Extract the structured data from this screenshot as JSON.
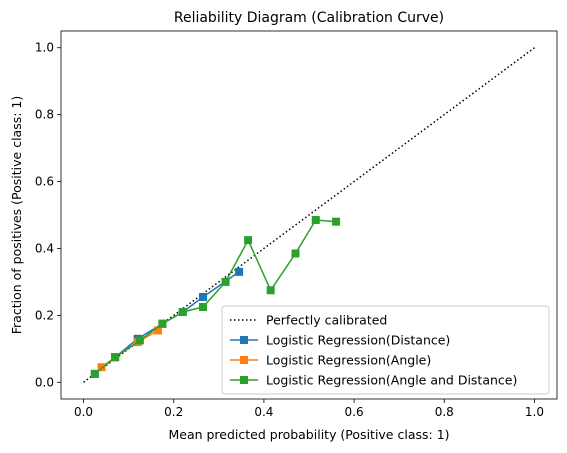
{
  "chart_data": {
    "type": "line",
    "title": "Reliability Diagram (Calibration Curve)",
    "xlabel": "Mean predicted probability (Positive class: 1)",
    "ylabel": "Fraction of positives (Positive class: 1)",
    "xlim": [
      -0.05,
      1.05
    ],
    "ylim": [
      -0.05,
      1.05
    ],
    "xticks": [
      0.0,
      0.2,
      0.4,
      0.6,
      0.8,
      1.0
    ],
    "yticks": [
      0.0,
      0.2,
      0.4,
      0.6,
      0.8,
      1.0
    ],
    "xtick_labels": [
      "0.0",
      "0.2",
      "0.4",
      "0.6",
      "0.8",
      "1.0"
    ],
    "ytick_labels": [
      "0.0",
      "0.2",
      "0.4",
      "0.6",
      "0.8",
      "1.0"
    ],
    "grid": false,
    "legend_position": "lower-right",
    "reference": {
      "name": "Perfectly calibrated",
      "x": [
        0,
        1
      ],
      "y": [
        0,
        1
      ],
      "color": "#000000",
      "style": "dotted"
    },
    "series": [
      {
        "name": "Logistic Regression(Distance)",
        "color": "#1f77b4",
        "x": [
          0.025,
          0.07,
          0.12,
          0.175,
          0.22,
          0.265,
          0.345
        ],
        "y": [
          0.025,
          0.075,
          0.13,
          0.175,
          0.21,
          0.255,
          0.33
        ]
      },
      {
        "name": "Logistic Regression(Angle)",
        "color": "#ff7f0e",
        "x": [
          0.04,
          0.07,
          0.12,
          0.165,
          0.175
        ],
        "y": [
          0.045,
          0.075,
          0.12,
          0.155,
          0.175
        ]
      },
      {
        "name": "Logistic Regression(Angle and Distance)",
        "color": "#2ca02c",
        "x": [
          0.025,
          0.07,
          0.125,
          0.175,
          0.22,
          0.265,
          0.315,
          0.365,
          0.415,
          0.47,
          0.515,
          0.56
        ],
        "y": [
          0.025,
          0.075,
          0.125,
          0.175,
          0.21,
          0.225,
          0.3,
          0.425,
          0.275,
          0.385,
          0.485,
          0.48
        ]
      }
    ]
  }
}
